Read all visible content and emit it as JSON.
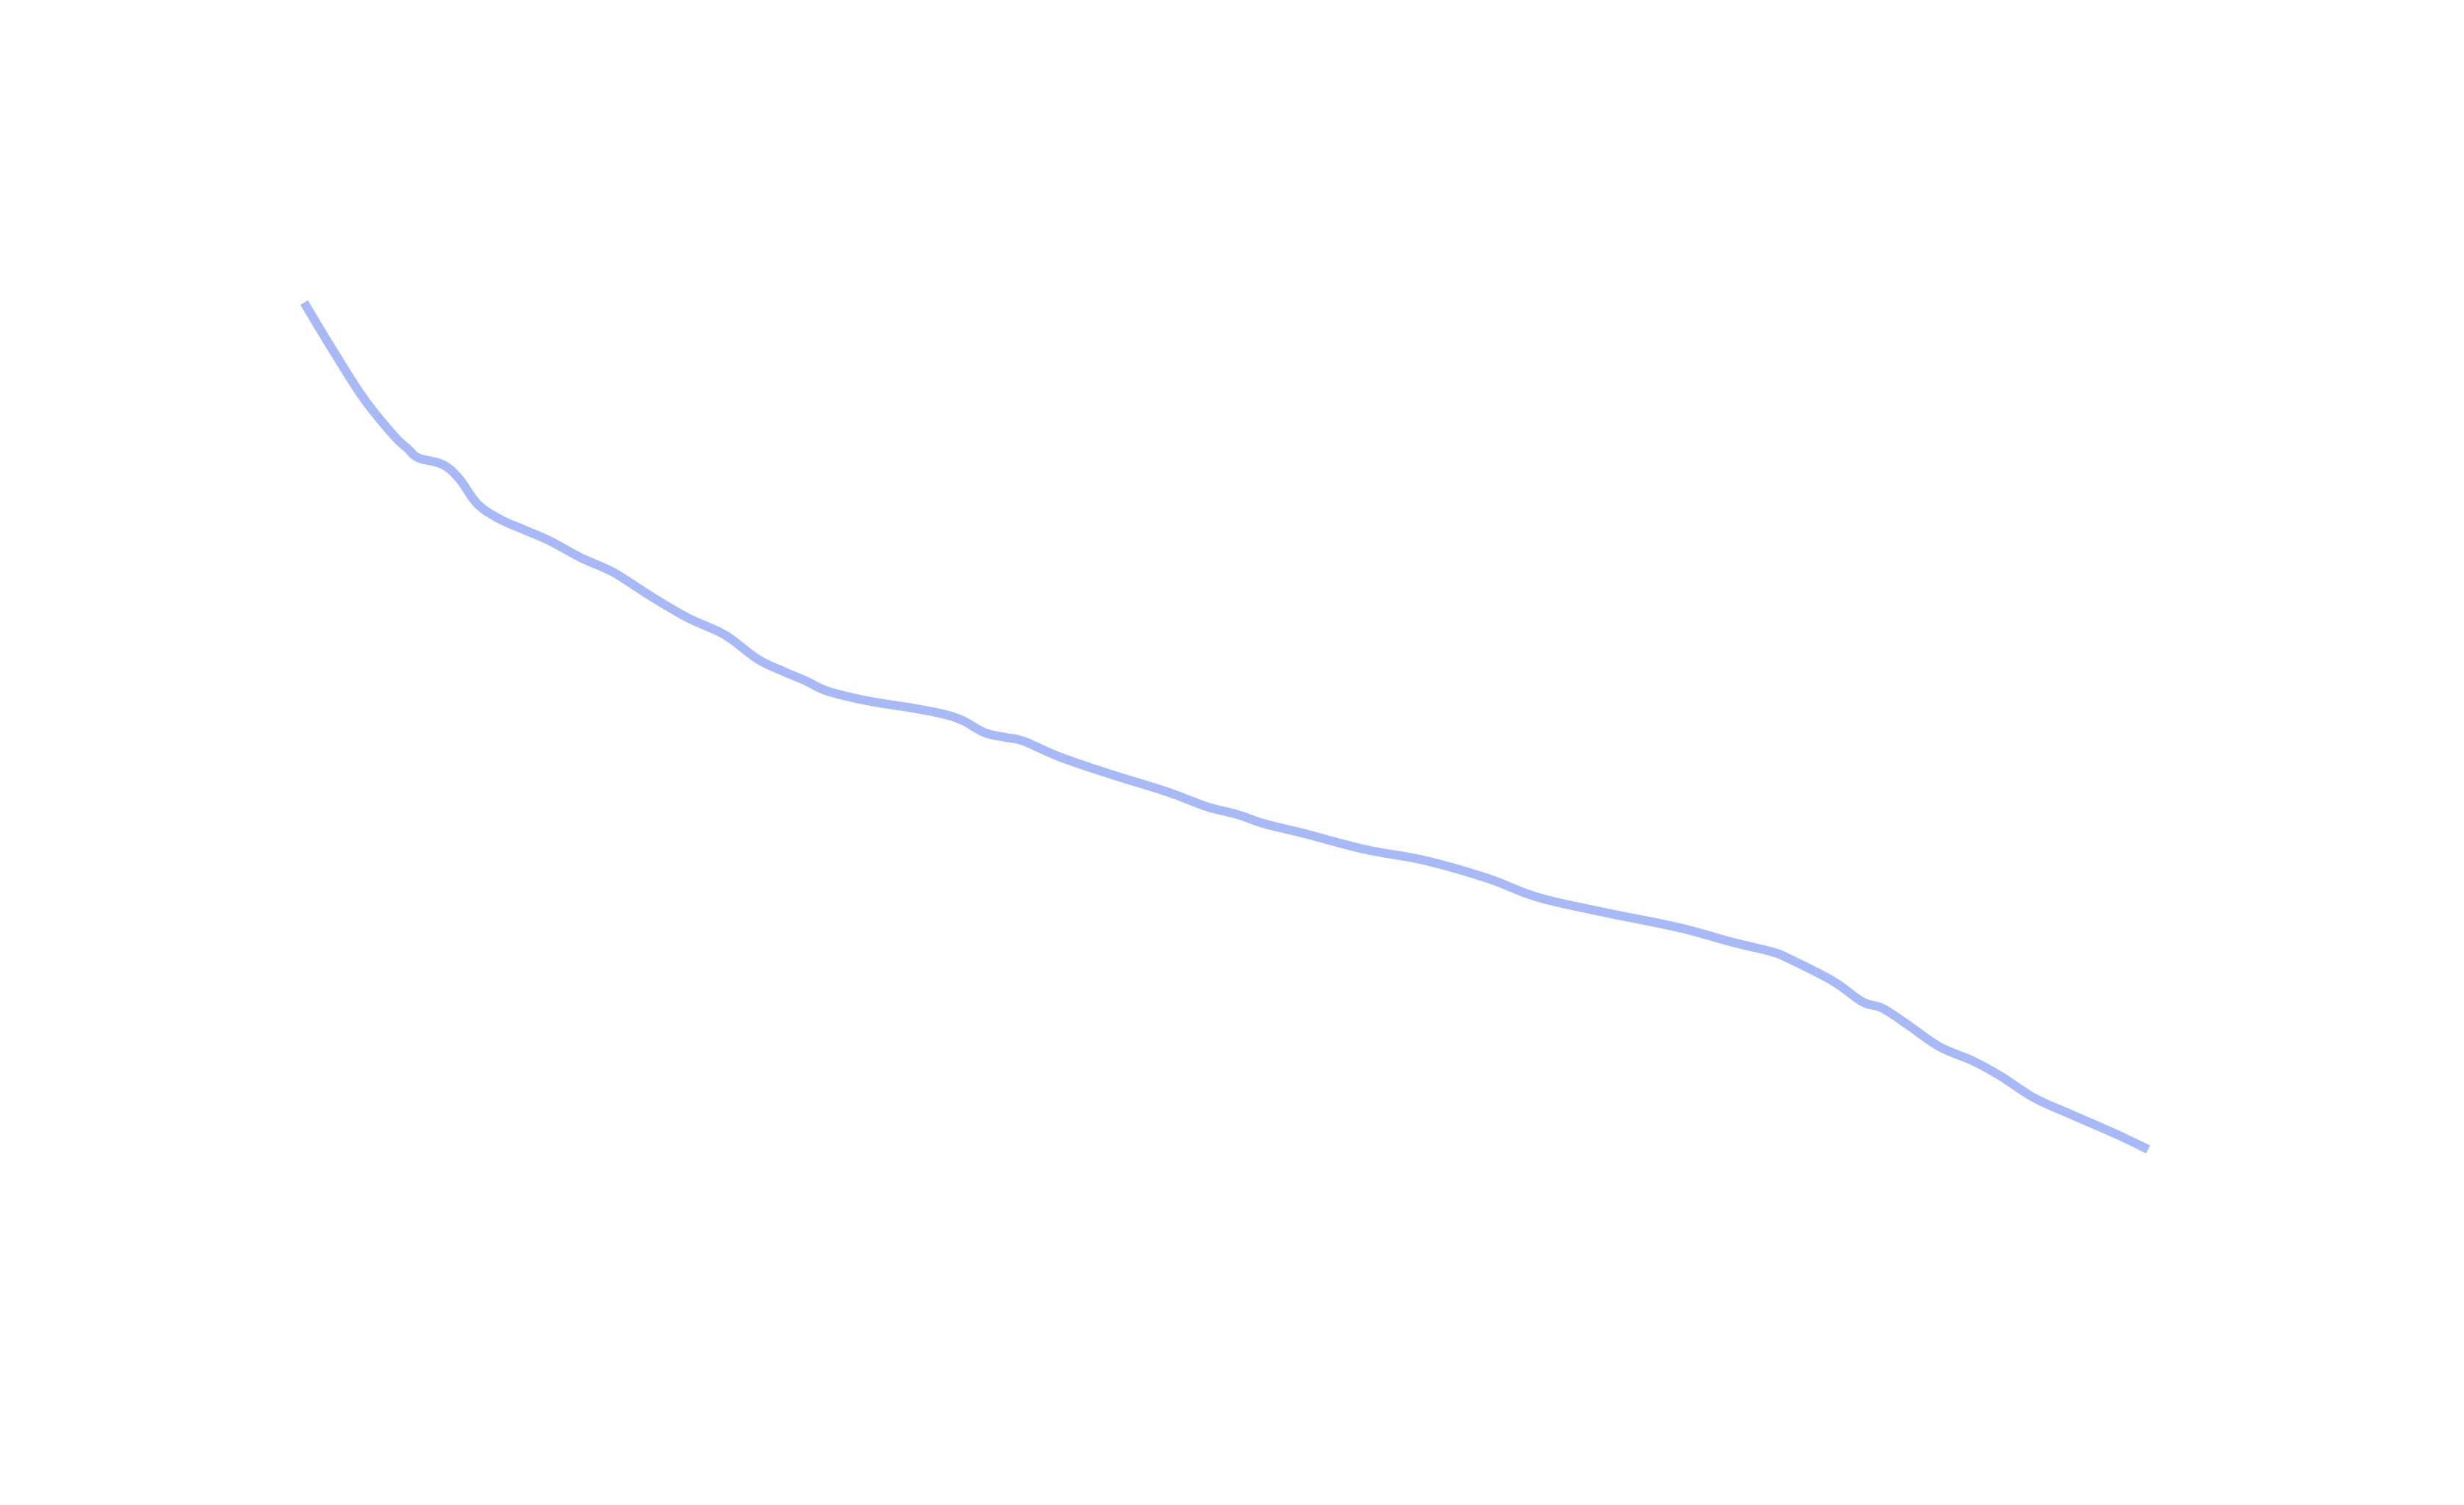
{
  "chart_data": {
    "type": "line",
    "title": "",
    "xlabel": "",
    "ylabel": "",
    "grid": false,
    "axes_visible": false,
    "legend": "none",
    "series_color": "#a7b9f6",
    "xlim": [
      0,
      100
    ],
    "ylim": [
      0,
      100
    ],
    "series": [
      {
        "x": [
          0,
          1.6,
          3.2,
          4.8,
          5.6,
          6.2,
          7.5,
          8.4,
          9.4,
          10.6,
          12.0,
          13.3,
          15.0,
          16.8,
          18.8,
          20.8,
          22.8,
          24.6,
          26.0,
          27.2,
          28.4,
          30.5,
          33.0,
          34.6,
          35.7,
          36.9,
          38.0,
          39.0,
          41.0,
          43.7,
          46.8,
          49.0,
          50.6,
          52.1,
          54.2,
          57.5,
          60.8,
          64.2,
          66.9,
          70.5,
          74.5,
          77.5,
          79.6,
          80.6,
          82.9,
          84.5,
          85.6,
          87.0,
          88.7,
          90.5,
          92.0,
          93.8,
          95.6,
          98.3,
          100.0
        ],
        "y": [
          100.0,
          94.8,
          89.9,
          86.0,
          84.5,
          83.5,
          82.8,
          81.3,
          78.6,
          77.0,
          75.8,
          74.7,
          72.9,
          71.3,
          68.8,
          66.5,
          64.7,
          62.1,
          60.8,
          59.8,
          58.7,
          57.7,
          56.9,
          56.3,
          55.6,
          54.3,
          53.8,
          53.4,
          51.7,
          49.9,
          48.0,
          46.4,
          45.6,
          44.6,
          43.6,
          41.9,
          40.7,
          38.8,
          36.8,
          35.2,
          33.6,
          32.0,
          31.0,
          30.2,
          27.9,
          25.7,
          25.0,
          23.2,
          20.9,
          19.4,
          17.8,
          15.5,
          13.9,
          11.6,
          10.0
        ]
      }
    ]
  }
}
